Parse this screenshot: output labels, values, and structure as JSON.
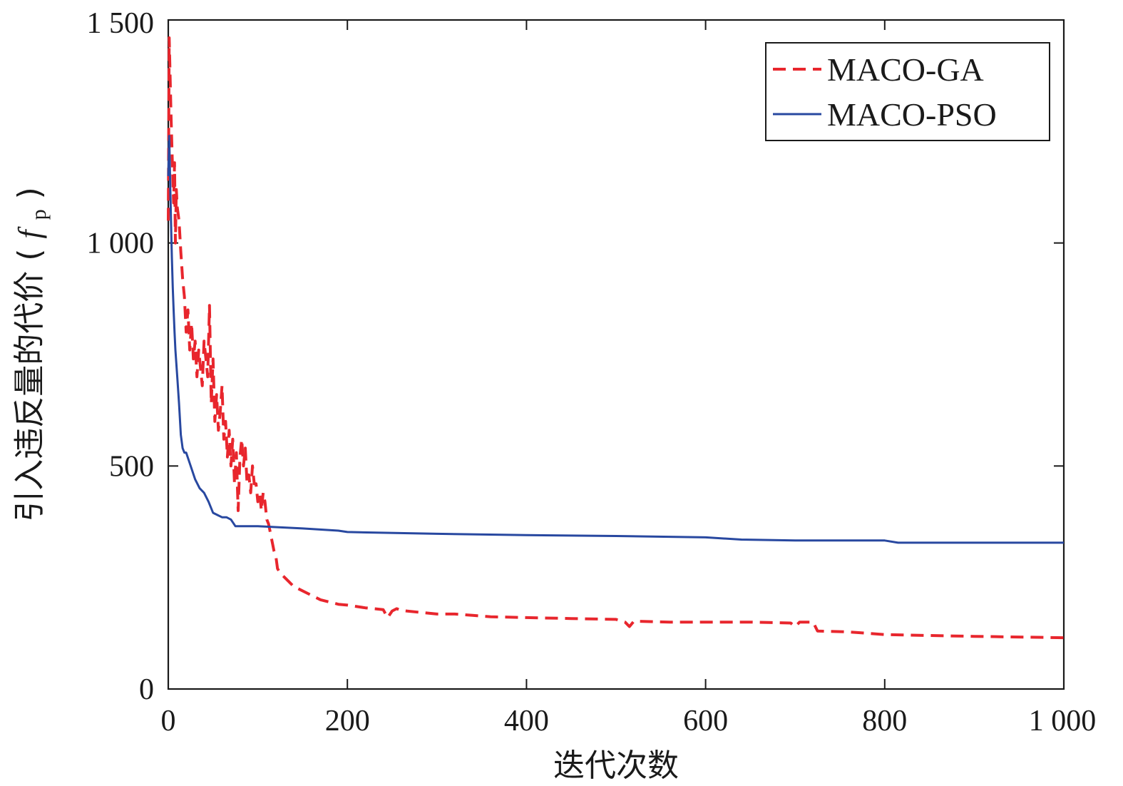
{
  "chart_data": {
    "type": "line",
    "title": "",
    "xlabel": "迭代次数",
    "ylabel": "引入违反量的代价",
    "ylabel_symbol": "f",
    "ylabel_subscript": "p",
    "xlim": [
      0,
      1000
    ],
    "ylim": [
      0,
      1500
    ],
    "xticks": [
      0,
      200,
      400,
      600,
      800,
      1000
    ],
    "xtick_labels": [
      "0",
      "200",
      "400",
      "600",
      "800",
      "1 000"
    ],
    "yticks": [
      0,
      500,
      1000,
      1500
    ],
    "ytick_labels": [
      "0",
      "500",
      "1 000",
      "1 500"
    ],
    "grid": false,
    "legend_position": "top-right",
    "series": [
      {
        "name": "MACO-GA",
        "color": "#e8262d",
        "style": "dashed",
        "x": [
          0,
          1,
          2,
          3,
          4,
          5,
          6,
          7,
          8,
          9,
          10,
          12,
          14,
          16,
          18,
          20,
          22,
          24,
          26,
          28,
          30,
          32,
          34,
          36,
          38,
          40,
          42,
          44,
          46,
          48,
          50,
          52,
          54,
          56,
          58,
          60,
          62,
          64,
          66,
          68,
          70,
          72,
          74,
          76,
          78,
          80,
          82,
          84,
          86,
          88,
          90,
          92,
          94,
          96,
          98,
          100,
          102,
          104,
          106,
          108,
          110,
          112,
          114,
          116,
          118,
          120,
          122,
          125,
          130,
          135,
          140,
          150,
          160,
          170,
          180,
          190,
          200,
          220,
          240,
          245,
          250,
          255,
          260,
          280,
          300,
          320,
          340,
          360,
          400,
          450,
          500,
          510,
          515,
          520,
          560,
          600,
          650,
          695,
          700,
          705,
          720,
          725,
          760,
          800,
          850,
          900,
          1000
        ],
        "y": [
          1050,
          1460,
          1380,
          1290,
          1220,
          1150,
          1090,
          1180,
          1000,
          1120,
          1080,
          1050,
          980,
          920,
          880,
          800,
          850,
          760,
          820,
          740,
          780,
          700,
          760,
          720,
          680,
          780,
          740,
          700,
          860,
          640,
          740,
          600,
          660,
          580,
          620,
          680,
          560,
          600,
          520,
          580,
          500,
          560,
          460,
          530,
          400,
          520,
          560,
          500,
          540,
          460,
          480,
          440,
          500,
          460,
          460,
          420,
          440,
          400,
          440,
          420,
          380,
          370,
          350,
          330,
          310,
          300,
          270,
          260,
          250,
          240,
          230,
          220,
          210,
          200,
          195,
          190,
          188,
          182,
          178,
          160,
          175,
          180,
          176,
          172,
          168,
          168,
          165,
          162,
          160,
          158,
          156,
          150,
          140,
          152,
          150,
          150,
          150,
          148,
          140,
          150,
          150,
          130,
          128,
          122,
          120,
          118,
          115
        ]
      },
      {
        "name": "MACO-PSO",
        "color": "#2848a0",
        "style": "solid",
        "x": [
          0,
          1,
          2,
          3,
          4,
          5,
          6,
          7,
          8,
          10,
          12,
          14,
          16,
          18,
          20,
          25,
          30,
          35,
          40,
          45,
          50,
          55,
          60,
          65,
          70,
          75,
          80,
          100,
          150,
          190,
          200,
          300,
          400,
          500,
          600,
          640,
          700,
          800,
          815,
          900,
          1000
        ],
        "y": [
          1150,
          1240,
          1150,
          1050,
          970,
          900,
          850,
          800,
          760,
          700,
          640,
          570,
          540,
          530,
          530,
          500,
          470,
          450,
          440,
          420,
          395,
          390,
          385,
          385,
          380,
          365,
          365,
          365,
          360,
          355,
          352,
          348,
          345,
          343,
          340,
          335,
          333,
          333,
          328,
          328,
          328
        ]
      }
    ]
  }
}
